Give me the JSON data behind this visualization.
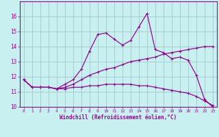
{
  "xlabel": "Windchill (Refroidissement éolien,°C)",
  "bg_color": "#c8f0f0",
  "grid_color": "#a0c8c8",
  "line_color": "#990099",
  "xlim": [
    -0.5,
    23.5
  ],
  "ylim": [
    10,
    17
  ],
  "yticks": [
    10,
    11,
    12,
    13,
    14,
    15,
    16
  ],
  "xticks": [
    0,
    1,
    2,
    3,
    4,
    5,
    6,
    7,
    8,
    9,
    10,
    11,
    12,
    13,
    14,
    15,
    16,
    17,
    18,
    19,
    20,
    21,
    22,
    23
  ],
  "series1_x": [
    0,
    1,
    2,
    3,
    4,
    5,
    6,
    7,
    8,
    9,
    10,
    11,
    12,
    13,
    14,
    15,
    16,
    17,
    18,
    19,
    20,
    21,
    22,
    23
  ],
  "series1_y": [
    11.8,
    11.3,
    11.3,
    11.3,
    11.2,
    11.5,
    11.8,
    12.5,
    13.7,
    14.8,
    14.9,
    14.5,
    14.1,
    14.4,
    15.3,
    16.2,
    13.8,
    13.6,
    13.2,
    13.3,
    13.1,
    12.1,
    10.5,
    10.0
  ],
  "series2_x": [
    0,
    1,
    2,
    3,
    4,
    5,
    6,
    7,
    8,
    9,
    10,
    11,
    12,
    13,
    14,
    15,
    16,
    17,
    18,
    19,
    20,
    21,
    22,
    23
  ],
  "series2_y": [
    11.8,
    11.3,
    11.3,
    11.3,
    11.2,
    11.3,
    11.5,
    11.8,
    12.1,
    12.3,
    12.5,
    12.6,
    12.8,
    13.0,
    13.1,
    13.2,
    13.3,
    13.5,
    13.6,
    13.7,
    13.8,
    13.9,
    14.0,
    14.0
  ],
  "series3_x": [
    0,
    1,
    2,
    3,
    4,
    5,
    6,
    7,
    8,
    9,
    10,
    11,
    12,
    13,
    14,
    15,
    16,
    17,
    18,
    19,
    20,
    21,
    22,
    23
  ],
  "series3_y": [
    11.8,
    11.3,
    11.3,
    11.3,
    11.2,
    11.2,
    11.3,
    11.3,
    11.4,
    11.4,
    11.5,
    11.5,
    11.5,
    11.5,
    11.4,
    11.4,
    11.3,
    11.2,
    11.1,
    11.0,
    10.9,
    10.7,
    10.4,
    10.1
  ]
}
